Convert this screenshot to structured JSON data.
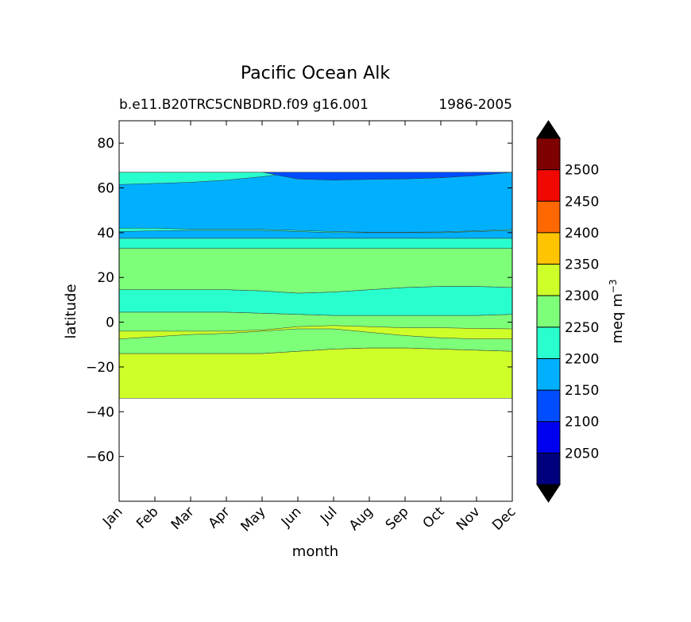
{
  "chart_data": {
    "type": "heatmap",
    "title": "Pacific Ocean Alk",
    "subtitle_left": "b.e11.B20TRC5CNBDRD.f09 g16.001",
    "subtitle_right": "1986-2005",
    "xlabel": "month",
    "ylabel": "latitude",
    "x_categories": [
      "Jan",
      "Feb",
      "Mar",
      "Apr",
      "May",
      "Jun",
      "Jul",
      "Aug",
      "Sep",
      "Oct",
      "Nov",
      "Dec"
    ],
    "ylim": [
      -80,
      90
    ],
    "yticks": [
      80,
      60,
      40,
      20,
      0,
      -20,
      -40,
      -60
    ],
    "ytick_labels": [
      "80",
      "60",
      "40",
      "20",
      "0",
      "−20",
      "−40",
      "−60"
    ],
    "colorbar": {
      "label": "meq m",
      "label_exponent": "−3",
      "levels": [
        2000,
        2050,
        2100,
        2150,
        2200,
        2250,
        2300,
        2350,
        2400,
        2450,
        2500,
        2550
      ],
      "tick_labels": [
        "2050",
        "2100",
        "2150",
        "2200",
        "2250",
        "2300",
        "2350",
        "2400",
        "2450",
        "2500"
      ],
      "tick_values": [
        2050,
        2100,
        2150,
        2200,
        2250,
        2300,
        2350,
        2400,
        2450,
        2500
      ],
      "colors": [
        "#00007f",
        "#0000f1",
        "#004cff",
        "#00b0ff",
        "#29ffce",
        "#7dff7a",
        "#ceff29",
        "#ffc400",
        "#ff6800",
        "#f10800",
        "#7f0000"
      ],
      "extend_color": "#000000"
    },
    "bands": [
      {
        "name": "band-south-subtropical",
        "color": "#ceff29",
        "bottom": [
          -34,
          -34,
          -34,
          -34,
          -34,
          -34,
          -34,
          -34,
          -34,
          -34,
          -34,
          -34
        ],
        "top": [
          -14,
          -14,
          -14,
          -14,
          -14,
          -13,
          -12,
          -11.5,
          -11.5,
          -12,
          -12.5,
          -13
        ]
      },
      {
        "name": "band-south-tropical",
        "color": "#7dff7a",
        "bottom": [
          -14,
          -14,
          -14,
          -14,
          -14,
          -13,
          -12,
          -11.5,
          -11.5,
          -12,
          -12.5,
          -13
        ],
        "top": [
          4.5,
          4.5,
          4.5,
          4.5,
          4,
          3.5,
          3,
          3,
          3,
          3,
          3,
          3.5
        ]
      },
      {
        "name": "band-equatorial",
        "color": "#29ffce",
        "bottom": [
          4.5,
          4.5,
          4.5,
          4.5,
          4,
          3.5,
          3,
          3,
          3,
          3,
          3,
          3.5
        ],
        "top": [
          14.5,
          14.5,
          14.5,
          14.5,
          14,
          13,
          13.5,
          14.5,
          15.5,
          16,
          16,
          15.5
        ]
      },
      {
        "name": "band-north-subtropical",
        "color": "#7dff7a",
        "bottom": [
          14.5,
          14.5,
          14.5,
          14.5,
          14,
          13,
          13.5,
          14.5,
          15.5,
          16,
          16,
          15.5
        ],
        "top": [
          33,
          33,
          33,
          33,
          33,
          33,
          33,
          33,
          33,
          33,
          33,
          33
        ]
      },
      {
        "name": "band-north-midlatitude",
        "color": "#29ffce",
        "bottom": [
          33,
          33,
          33,
          33,
          33,
          33,
          33,
          33,
          33,
          33,
          33,
          33
        ],
        "top": [
          37.5,
          37.5,
          37.5,
          37.5,
          37.5,
          37.5,
          37.5,
          37.5,
          37.5,
          37.5,
          37.5,
          37.5
        ]
      },
      {
        "name": "band-north-subpolar",
        "color": "#00b0ff",
        "bottom": [
          37.5,
          37.5,
          37.5,
          37.5,
          37.5,
          37.5,
          37.5,
          37.5,
          37.5,
          37.5,
          37.5,
          37.5
        ],
        "top": [
          67,
          67,
          67,
          67,
          67,
          67,
          67,
          67,
          67,
          67,
          67,
          67
        ]
      },
      {
        "name": "band-north-40-line",
        "color": "#29ffce",
        "bottom": [
          40.5,
          40.8,
          41,
          41,
          41,
          40.5,
          40,
          40,
          40,
          40,
          40.5,
          41
        ],
        "top": [
          42,
          42,
          41.5,
          41.5,
          41.5,
          41,
          40.5,
          40.2,
          40.2,
          40.3,
          40.8,
          41.5
        ]
      },
      {
        "name": "band-south-equatorial-tongue",
        "color": "#ceff29",
        "bottom": [
          -7.5,
          -6.5,
          -5.5,
          -5,
          -4,
          -3,
          -3,
          -4.5,
          -6,
          -7,
          -7.5,
          -7.5
        ],
        "top": [
          -4,
          -4,
          -4,
          -4,
          -3.5,
          -2,
          -1.5,
          -2,
          -2.5,
          -2.5,
          -2.8,
          -3
        ]
      },
      {
        "name": "band-arctic-edge-west",
        "color": "#29ffce",
        "bottom": [
          61.5,
          62,
          62.5,
          63.5,
          65,
          67,
          67,
          67,
          67,
          67,
          67,
          67
        ],
        "top": [
          67,
          67,
          67,
          67,
          67,
          67,
          67,
          67,
          67,
          67,
          67,
          67
        ]
      },
      {
        "name": "band-arctic-edge-east",
        "color": "#004cff",
        "bottom": [
          67,
          67,
          67,
          67,
          67,
          64,
          63.5,
          63.8,
          64,
          64.5,
          65.5,
          67
        ],
        "top": [
          67,
          67,
          67,
          67,
          67,
          67,
          67,
          67,
          67,
          67,
          67,
          67
        ]
      }
    ]
  }
}
